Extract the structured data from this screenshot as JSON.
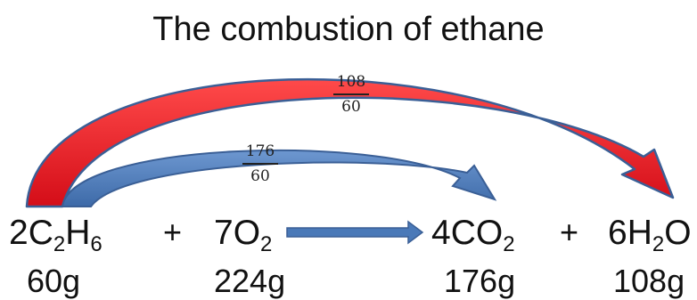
{
  "title": "The combustion of ethane",
  "reactants": [
    {
      "coef": "2",
      "parts": [
        [
          "C",
          "2"
        ],
        [
          "H",
          "6"
        ]
      ],
      "mass": "60g"
    },
    {
      "coef": "7",
      "parts": [
        [
          "O",
          "2"
        ]
      ],
      "mass": "224g"
    }
  ],
  "products": [
    {
      "coef": "4",
      "parts": [
        [
          "CO",
          "2"
        ]
      ],
      "mass": "176g"
    },
    {
      "coef": "6",
      "parts": [
        [
          "H",
          "2"
        ],
        [
          "O",
          ""
        ]
      ],
      "mass": "108g"
    }
  ],
  "plus_sign": "+",
  "ratios": {
    "water": {
      "num": "108",
      "den": "60"
    },
    "co2": {
      "num": "176",
      "den": "60"
    }
  },
  "colors": {
    "red_arrow": "#e8121c",
    "blue_arrow": "#4a79b8",
    "arrow_outline": "#3a5f96"
  }
}
